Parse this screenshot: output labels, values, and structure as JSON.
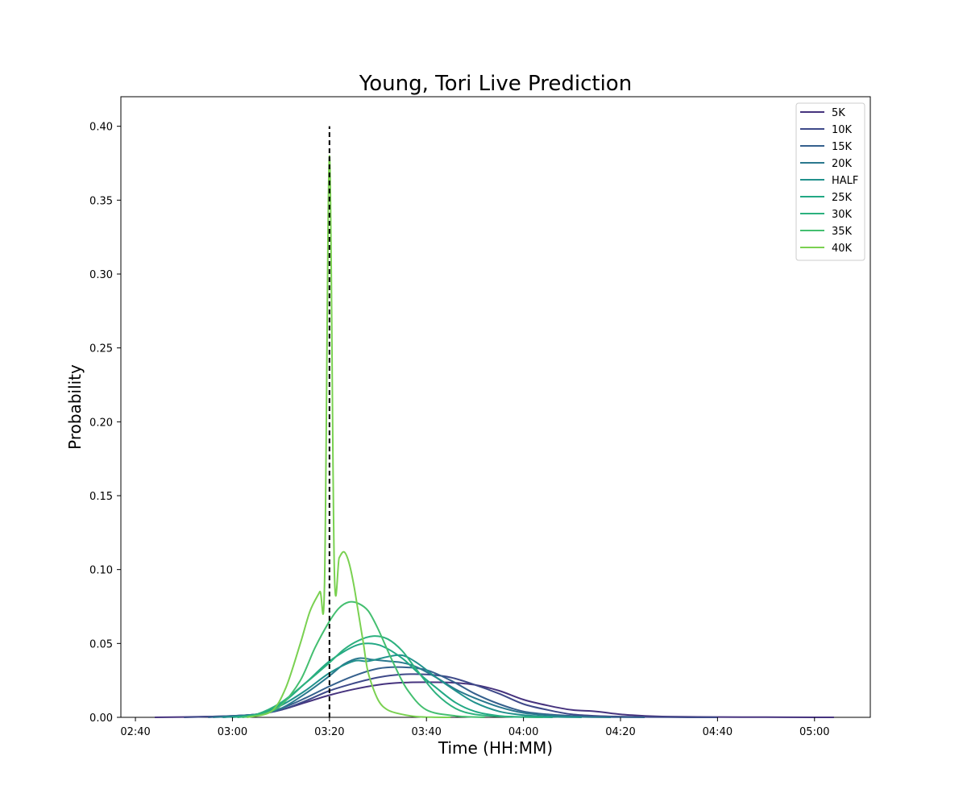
{
  "chart_data": {
    "type": "line",
    "title": "Young, Tori Live Prediction",
    "xlabel": "Time (HH:MM)",
    "ylabel": "Probability",
    "x_unit": "minutes",
    "xlim": [
      157,
      311.5
    ],
    "ylim": [
      0,
      0.42
    ],
    "x_ticks": [
      {
        "value": 160,
        "label": "02:40"
      },
      {
        "value": 180,
        "label": "03:00"
      },
      {
        "value": 200,
        "label": "03:20"
      },
      {
        "value": 220,
        "label": "03:40"
      },
      {
        "value": 240,
        "label": "04:00"
      },
      {
        "value": 260,
        "label": "04:20"
      },
      {
        "value": 280,
        "label": "04:40"
      },
      {
        "value": 300,
        "label": "05:00"
      }
    ],
    "y_ticks": [
      {
        "value": 0.0,
        "label": "0.00"
      },
      {
        "value": 0.05,
        "label": "0.05"
      },
      {
        "value": 0.1,
        "label": "0.10"
      },
      {
        "value": 0.15,
        "label": "0.15"
      },
      {
        "value": 0.2,
        "label": "0.20"
      },
      {
        "value": 0.25,
        "label": "0.25"
      },
      {
        "value": 0.3,
        "label": "0.30"
      },
      {
        "value": 0.35,
        "label": "0.35"
      },
      {
        "value": 0.4,
        "label": "0.40"
      }
    ],
    "grid": false,
    "legend_position": "top-right",
    "reference_line": {
      "x": 200,
      "y_from": 0,
      "y_to": 0.4,
      "style": "dashed",
      "color": "#000000"
    },
    "series": [
      {
        "name": "5K",
        "color": "#46337e",
        "x": [
          164,
          175,
          180,
          185,
          190,
          195,
          200,
          205,
          210,
          215,
          220,
          225,
          230,
          235,
          240,
          245,
          250,
          255,
          260,
          265,
          270,
          280,
          290,
          300,
          304
        ],
        "y": [
          0.0,
          0.0005,
          0.001,
          0.002,
          0.005,
          0.01,
          0.015,
          0.019,
          0.022,
          0.0235,
          0.0238,
          0.0235,
          0.022,
          0.018,
          0.012,
          0.008,
          0.005,
          0.004,
          0.002,
          0.001,
          0.0005,
          0.0002,
          0.0001,
          0.0,
          0.0
        ]
      },
      {
        "name": "10K",
        "color": "#3e4989",
        "x": [
          170,
          180,
          185,
          190,
          195,
          200,
          205,
          210,
          215,
          220,
          225,
          230,
          235,
          240,
          245,
          250,
          255,
          260,
          270,
          280
        ],
        "y": [
          0.0,
          0.001,
          0.002,
          0.005,
          0.011,
          0.018,
          0.023,
          0.027,
          0.029,
          0.029,
          0.027,
          0.022,
          0.016,
          0.009,
          0.005,
          0.002,
          0.001,
          0.0005,
          0.0001,
          0.0
        ]
      },
      {
        "name": "15K",
        "color": "#35608d",
        "x": [
          175,
          180,
          185,
          190,
          195,
          200,
          205,
          210,
          215,
          220,
          225,
          230,
          235,
          240,
          245,
          250,
          255,
          265
        ],
        "y": [
          0.0,
          0.001,
          0.002,
          0.006,
          0.013,
          0.021,
          0.028,
          0.033,
          0.034,
          0.032,
          0.025,
          0.016,
          0.009,
          0.004,
          0.002,
          0.001,
          0.0003,
          0.0
        ]
      },
      {
        "name": "20K",
        "color": "#2a788e",
        "x": [
          176,
          185,
          190,
          195,
          200,
          203,
          206,
          209,
          212,
          215,
          218,
          222,
          226,
          230,
          235,
          240,
          245,
          250,
          258
        ],
        "y": [
          0.0,
          0.002,
          0.006,
          0.016,
          0.028,
          0.036,
          0.04,
          0.039,
          0.038,
          0.037,
          0.034,
          0.027,
          0.019,
          0.013,
          0.007,
          0.003,
          0.0015,
          0.0005,
          0.0
        ]
      },
      {
        "name": "HALF",
        "color": "#21918c",
        "x": [
          178,
          185,
          190,
          195,
          200,
          205,
          208,
          212,
          215,
          218,
          222,
          226,
          230,
          235,
          240,
          245,
          252
        ],
        "y": [
          0.0,
          0.002,
          0.008,
          0.018,
          0.03,
          0.038,
          0.038,
          0.041,
          0.042,
          0.037,
          0.027,
          0.018,
          0.01,
          0.004,
          0.0015,
          0.0005,
          0.0
        ]
      },
      {
        "name": "25K",
        "color": "#22a884",
        "x": [
          180,
          185,
          190,
          195,
          200,
          205,
          208,
          211,
          215,
          218,
          222,
          226,
          230,
          235,
          240,
          246
        ],
        "y": [
          0.0,
          0.002,
          0.009,
          0.023,
          0.038,
          0.048,
          0.05,
          0.048,
          0.04,
          0.031,
          0.02,
          0.01,
          0.004,
          0.001,
          0.0003,
          0.0
        ]
      },
      {
        "name": "30K",
        "color": "#2cb17e",
        "x": [
          181,
          185,
          190,
          195,
          200,
          203,
          206,
          209,
          212,
          215,
          218,
          222,
          226,
          230,
          236,
          244
        ],
        "y": [
          0.0,
          0.002,
          0.01,
          0.023,
          0.037,
          0.046,
          0.052,
          0.055,
          0.053,
          0.045,
          0.032,
          0.016,
          0.006,
          0.002,
          0.0005,
          0.0
        ]
      },
      {
        "name": "35K",
        "color": "#44bf70",
        "x": [
          182,
          186,
          190,
          194,
          197,
          200,
          202,
          204,
          206,
          208,
          210,
          213,
          216,
          220,
          226,
          232
        ],
        "y": [
          0.0,
          0.002,
          0.008,
          0.025,
          0.047,
          0.065,
          0.074,
          0.078,
          0.077,
          0.072,
          0.06,
          0.038,
          0.019,
          0.005,
          0.001,
          0.0
        ]
      },
      {
        "name": "40K",
        "color": "#7ad151",
        "x": [
          183,
          188,
          191,
          194,
          196,
          198,
          199,
          200,
          201,
          202,
          203,
          204,
          205,
          206,
          207,
          208,
          210,
          212,
          215,
          218,
          221,
          225
        ],
        "y": [
          0.0,
          0.004,
          0.02,
          0.05,
          0.072,
          0.085,
          0.092,
          0.38,
          0.1,
          0.108,
          0.112,
          0.105,
          0.09,
          0.07,
          0.05,
          0.03,
          0.012,
          0.005,
          0.002,
          0.0005,
          0.0001,
          0.0
        ]
      }
    ]
  }
}
